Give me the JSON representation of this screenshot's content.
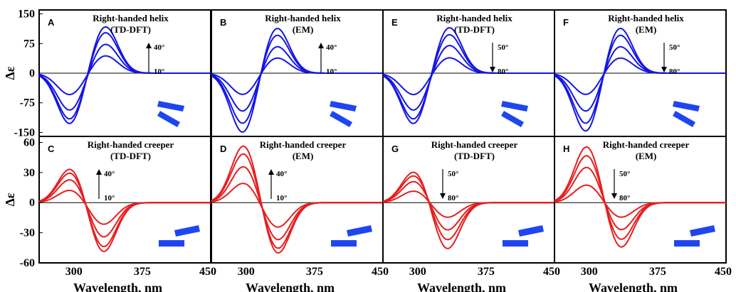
{
  "axes": {
    "xlabel": "Wavelength, nm",
    "ylabel": "Δε",
    "xticks": [
      "300",
      "375",
      "450"
    ],
    "top_yticks": [
      "150",
      "75",
      "0",
      "-75",
      "-150"
    ],
    "bottom_yticks": [
      "60",
      "30",
      "0",
      "-30",
      "-60"
    ]
  },
  "colors": {
    "helix": "#1414e6",
    "creeper": "#e61e1e",
    "rods": "#1e46f0"
  },
  "chart_data": [
    {
      "type": "line",
      "letter": "A",
      "title": [
        "Right-handed helix",
        "(TD-DFT)"
      ],
      "xlim": [
        262,
        450
      ],
      "ylim": [
        -160,
        160
      ],
      "xticks": [
        300,
        375,
        450
      ],
      "yticks": [
        150,
        75,
        0,
        -75,
        -150
      ],
      "angles": [
        "40°",
        "10°"
      ],
      "arrow": "up",
      "rods": "helix",
      "color": "#1414e6",
      "curve": {
        "neg_peak_x": 296,
        "pos_peak_x": 334,
        "neg_peak_y": [
          -55,
          -95,
          -118,
          -130
        ],
        "pos_peak_y": [
          45,
          75,
          105,
          120
        ]
      }
    },
    {
      "type": "line",
      "letter": "B",
      "title": [
        "Right-handed helix",
        "(EM)"
      ],
      "xlim": [
        262,
        450
      ],
      "ylim": [
        -160,
        160
      ],
      "xticks": [
        300,
        375,
        450
      ],
      "yticks": [
        150,
        75,
        0,
        -75,
        -150
      ],
      "angles": [
        "40°",
        "10°"
      ],
      "arrow": "up",
      "rods": "helix",
      "color": "#1414e6",
      "curve": {
        "neg_peak_x": 297,
        "pos_peak_x": 333,
        "neg_peak_y": [
          -55,
          -98,
          -130,
          -153
        ],
        "pos_peak_y": [
          40,
          70,
          100,
          118
        ]
      }
    },
    {
      "type": "line",
      "letter": "E",
      "title": [
        "Right-handed helix",
        "(TD-DFT)"
      ],
      "xlim": [
        262,
        450
      ],
      "ylim": [
        -160,
        160
      ],
      "xticks": [
        300,
        375,
        450
      ],
      "yticks": [
        150,
        75,
        0,
        -75,
        -150
      ],
      "angles": [
        "50°",
        "80°"
      ],
      "arrow": "down",
      "rods": "helix",
      "color": "#1414e6",
      "curve": {
        "neg_peak_x": 296,
        "pos_peak_x": 334,
        "neg_peak_y": [
          -55,
          -95,
          -118,
          -130
        ],
        "pos_peak_y": [
          40,
          72,
          100,
          118
        ]
      }
    },
    {
      "type": "line",
      "letter": "F",
      "title": [
        "Right-handed helix",
        "(EM)"
      ],
      "xlim": [
        262,
        450
      ],
      "ylim": [
        -160,
        160
      ],
      "xticks": [
        300,
        375,
        450
      ],
      "yticks": [
        150,
        75,
        0,
        -75,
        -150
      ],
      "angles": [
        "50°",
        "80°"
      ],
      "arrow": "down",
      "rods": "helix",
      "color": "#1414e6",
      "curve": {
        "neg_peak_x": 297,
        "pos_peak_x": 333,
        "neg_peak_y": [
          -55,
          -98,
          -130,
          -150
        ],
        "pos_peak_y": [
          40,
          70,
          100,
          118
        ]
      }
    },
    {
      "type": "line",
      "letter": "C",
      "title": [
        "Right-handed creeper",
        "(TD-DFT)"
      ],
      "xlim": [
        262,
        450
      ],
      "ylim": [
        -60,
        66
      ],
      "xticks": [
        300,
        375,
        450
      ],
      "yticks": [
        60,
        30,
        0,
        -30,
        -60
      ],
      "angles": [
        "40°",
        "10°"
      ],
      "arrow": "up",
      "rods": "creeper",
      "color": "#e61e1e",
      "curve": {
        "neg_peak_x": 332,
        "pos_peak_x": 297,
        "neg_peak_y": [
          -22,
          -35,
          -45,
          -50
        ],
        "pos_peak_y": [
          13,
          24,
          31,
          35
        ]
      }
    },
    {
      "type": "line",
      "letter": "D",
      "title": [
        "Right-handed creeper",
        "(EM)"
      ],
      "xlim": [
        262,
        450
      ],
      "ylim": [
        -60,
        66
      ],
      "xticks": [
        300,
        375,
        450
      ],
      "yticks": [
        60,
        30,
        0,
        -30,
        -60
      ],
      "angles": [
        "40°",
        "10°"
      ],
      "arrow": "up",
      "rods": "creeper",
      "color": "#e61e1e",
      "curve": {
        "neg_peak_x": 334,
        "pos_peak_x": 298,
        "neg_peak_y": [
          -25,
          -38,
          -47,
          -52
        ],
        "pos_peak_y": [
          20,
          37,
          50,
          58
        ]
      }
    },
    {
      "type": "line",
      "letter": "G",
      "title": [
        "Right-handed creeper",
        "(TD-DFT)"
      ],
      "xlim": [
        262,
        450
      ],
      "ylim": [
        -60,
        66
      ],
      "xticks": [
        300,
        375,
        450
      ],
      "yticks": [
        60,
        30,
        0,
        -30,
        -60
      ],
      "angles": [
        "50°",
        "80°"
      ],
      "arrow": "down",
      "rods": "creeper",
      "color": "#e61e1e",
      "curve": {
        "neg_peak_x": 332,
        "pos_peak_x": 297,
        "neg_peak_y": [
          -15,
          -28,
          -38,
          -47
        ],
        "pos_peak_y": [
          12,
          22,
          28,
          32
        ]
      }
    },
    {
      "type": "line",
      "letter": "H",
      "title": [
        "Right-handed creeper",
        "(EM)"
      ],
      "xlim": [
        262,
        450
      ],
      "ylim": [
        -60,
        66
      ],
      "xticks": [
        300,
        375,
        450
      ],
      "yticks": [
        60,
        30,
        0,
        -30,
        -60
      ],
      "angles": [
        "50°",
        "80°"
      ],
      "arrow": "down",
      "rods": "creeper",
      "color": "#e61e1e",
      "curve": {
        "neg_peak_x": 334,
        "pos_peak_x": 298,
        "neg_peak_y": [
          -15,
          -28,
          -38,
          -46
        ],
        "pos_peak_y": [
          18,
          36,
          48,
          57
        ]
      }
    }
  ]
}
